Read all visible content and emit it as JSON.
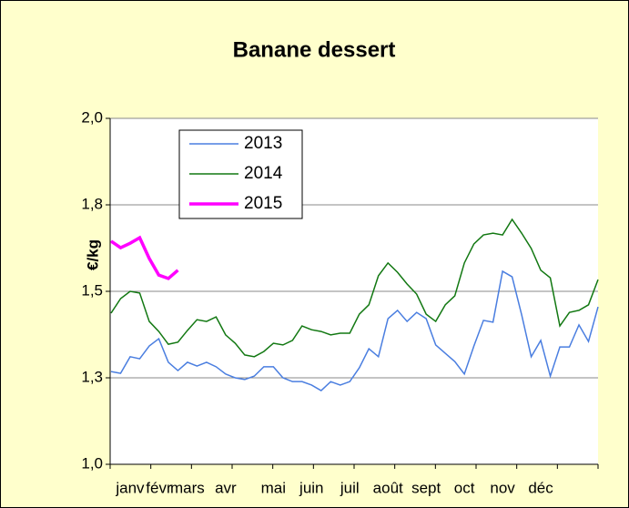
{
  "chart_data": {
    "type": "line",
    "title": "Banane dessert",
    "y_label": "€/kg",
    "categories": [
      null,
      null,
      "janv",
      null,
      null,
      "févr",
      null,
      null,
      "mars",
      null,
      null,
      null,
      "avr",
      null,
      null,
      null,
      null,
      "mai",
      null,
      null,
      null,
      "juin",
      null,
      null,
      null,
      "juil",
      null,
      null,
      null,
      "août",
      null,
      null,
      null,
      "sept",
      null,
      null,
      null,
      "oct",
      null,
      null,
      null,
      "nov",
      null,
      null,
      null,
      "déc",
      null,
      null,
      null,
      null,
      null,
      null
    ],
    "series": [
      {
        "name": "2013",
        "color": "#4a7ee0",
        "values": [
          1.268,
          1.263,
          1.311,
          1.305,
          1.342,
          1.363,
          1.295,
          1.271,
          1.295,
          1.284,
          1.295,
          1.282,
          1.261,
          1.25,
          1.245,
          1.255,
          1.282,
          1.282,
          1.25,
          1.239,
          1.239,
          1.229,
          1.213,
          1.239,
          1.229,
          1.239,
          1.279,
          1.334,
          1.311,
          1.421,
          1.445,
          1.413,
          1.439,
          1.421,
          1.345,
          1.321,
          1.297,
          1.261,
          1.342,
          1.416,
          1.411,
          1.558,
          1.542,
          1.432,
          1.311,
          1.358,
          1.255,
          1.339,
          1.339,
          1.403,
          1.355,
          1.455
        ]
      },
      {
        "name": "2014",
        "color": "#127812",
        "values": [
          1.437,
          1.479,
          1.5,
          1.495,
          1.413,
          1.384,
          1.347,
          1.353,
          1.387,
          1.418,
          1.413,
          1.426,
          1.374,
          1.35,
          1.316,
          1.311,
          1.326,
          1.35,
          1.345,
          1.358,
          1.4,
          1.389,
          1.384,
          1.374,
          1.379,
          1.379,
          1.434,
          1.461,
          1.545,
          1.582,
          1.555,
          1.521,
          1.492,
          1.434,
          1.413,
          1.461,
          1.487,
          1.582,
          1.637,
          1.663,
          1.668,
          1.663,
          1.708,
          1.668,
          1.624,
          1.561,
          1.539,
          1.4,
          1.439,
          1.445,
          1.461,
          1.534
        ]
      },
      {
        "name": "2015",
        "color": "#ff00ff",
        "values": [
          1.645,
          1.626,
          1.639,
          1.655,
          1.595,
          1.547,
          1.537,
          1.561,
          null,
          null,
          null,
          null,
          null,
          null,
          null,
          null,
          null,
          null,
          null,
          null,
          null,
          null,
          null,
          null,
          null,
          null,
          null,
          null,
          null,
          null,
          null,
          null,
          null,
          null,
          null,
          null,
          null,
          null,
          null,
          null,
          null,
          null,
          null,
          null,
          null,
          null,
          null,
          null,
          null,
          null,
          null,
          null
        ]
      }
    ],
    "ylim": [
      1.0,
      2.0
    ],
    "yticks": [
      {
        "value": 1.0,
        "label": "1,0"
      },
      {
        "value": 1.25,
        "label": "1,3"
      },
      {
        "value": 1.5,
        "label": "1,5"
      },
      {
        "value": 1.75,
        "label": "1,8"
      },
      {
        "value": 2.0,
        "label": "2,0"
      }
    ],
    "grid": true,
    "legend": "upper left"
  }
}
